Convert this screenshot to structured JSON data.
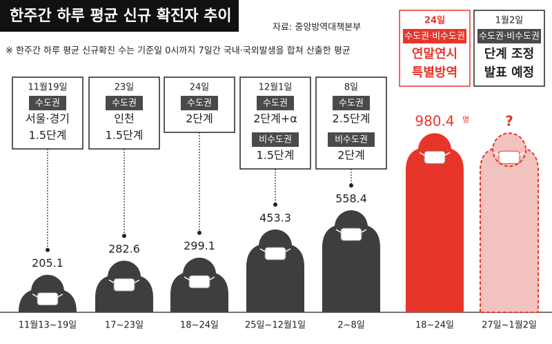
{
  "chart_data": {
    "type": "bar",
    "title": "한주간 하루 평균 신규 확진자 추이",
    "source": "자료: 중앙방역대책본부",
    "note": "※ 한주간 하루 평균 신규확진 수는 기준일 0시까지 7일간 국내·국외발생을 합쳐 산출한 평균",
    "categories": [
      "11월13~19일",
      "17~23일",
      "18~24일",
      "25일~12월1일",
      "2~8일",
      "18~24일",
      "27일~1월2일"
    ],
    "values": [
      205.1,
      282.6,
      299.1,
      453.3,
      558.4,
      980.4,
      null
    ],
    "value_labels": [
      "205.1",
      "282.6",
      "299.1",
      "453.3",
      "558.4",
      "980.4",
      "?"
    ],
    "unit_label": "명",
    "colors": [
      "#3d3e3f",
      "#3d3e3f",
      "#3d3e3f",
      "#3d3e3f",
      "#3d3e3f",
      "#e8352a",
      "#f2c3be"
    ],
    "ylim": [
      0,
      1000
    ],
    "annotations": [
      {
        "date": "11월19일",
        "items": [
          {
            "region": "수도권",
            "text": [
              "서울·경기",
              "1.5단계"
            ]
          }
        ]
      },
      {
        "date": "23일",
        "items": [
          {
            "region": "수도권",
            "text": [
              "인천",
              "1.5단계"
            ]
          }
        ]
      },
      {
        "date": "24일",
        "items": [
          {
            "region": "수도권",
            "text": [
              "2단계"
            ]
          }
        ]
      },
      {
        "date": "12월1일",
        "items": [
          {
            "region": "수도권",
            "text": [
              "2단계+α"
            ]
          },
          {
            "region": "비수도권",
            "text": [
              "1.5단계"
            ]
          }
        ]
      },
      {
        "date": "8일",
        "items": [
          {
            "region": "수도권",
            "text": [
              "2.5단계"
            ]
          },
          {
            "region": "비수도권",
            "text": [
              "2단계"
            ]
          }
        ]
      },
      {
        "date": "24일",
        "items": [
          {
            "region": "수도권·비수도권",
            "text": [
              "연말연시",
              "특별방역"
            ]
          }
        ]
      },
      {
        "date": "1월2일",
        "items": [
          {
            "region": "수도권·비수도권",
            "text": [
              "단계 조정",
              "발표 예정"
            ]
          }
        ]
      }
    ]
  }
}
